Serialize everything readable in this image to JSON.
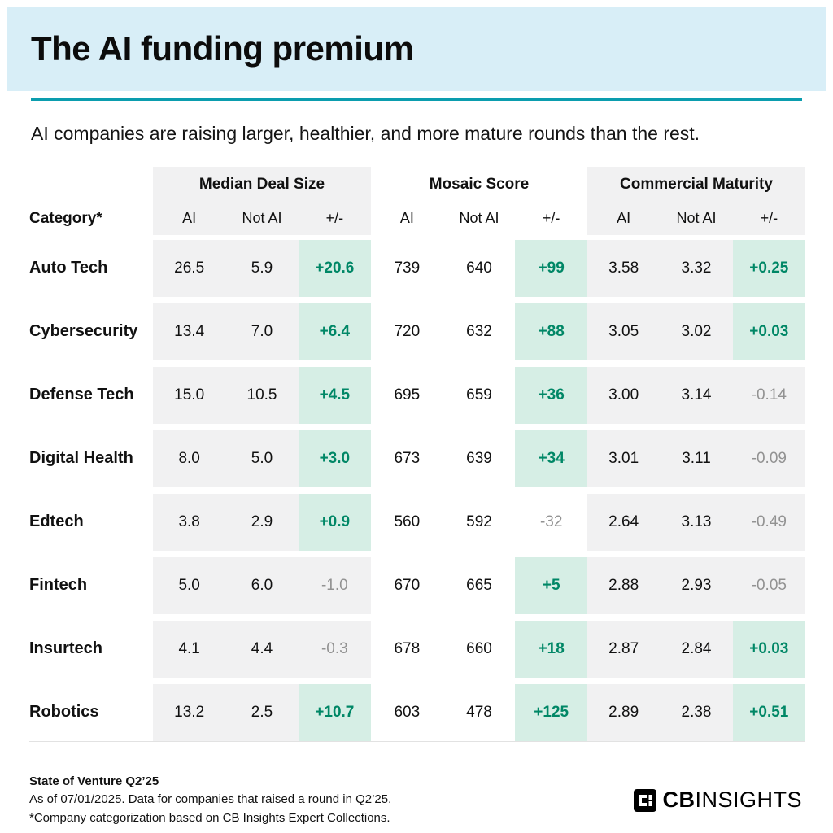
{
  "header": {
    "title": "The AI funding premium",
    "subtitle": "AI companies are raising larger, healthier, and more mature rounds than the rest."
  },
  "chart_data": {
    "type": "table",
    "title": "The AI funding premium",
    "subtitle": "AI companies are raising larger, healthier, and more mature rounds than the rest.",
    "category_header": "Category*",
    "column_groups": [
      {
        "label": "Median Deal Size",
        "columns": [
          "AI",
          "Not AI",
          "+/-"
        ]
      },
      {
        "label": "Mosaic Score",
        "columns": [
          "AI",
          "Not AI",
          "+/-"
        ]
      },
      {
        "label": "Commercial Maturity",
        "columns": [
          "AI",
          "Not AI",
          "+/-"
        ]
      }
    ],
    "rows": [
      {
        "category": "Auto Tech",
        "median_deal_size": {
          "ai": "26.5",
          "not_ai": "5.9",
          "delta": "+20.6"
        },
        "mosaic_score": {
          "ai": "739",
          "not_ai": "640",
          "delta": "+99"
        },
        "commercial_maturity": {
          "ai": "3.58",
          "not_ai": "3.32",
          "delta": "+0.25"
        }
      },
      {
        "category": "Cybersecurity",
        "median_deal_size": {
          "ai": "13.4",
          "not_ai": "7.0",
          "delta": "+6.4"
        },
        "mosaic_score": {
          "ai": "720",
          "not_ai": "632",
          "delta": "+88"
        },
        "commercial_maturity": {
          "ai": "3.05",
          "not_ai": "3.02",
          "delta": "+0.03"
        }
      },
      {
        "category": "Defense Tech",
        "median_deal_size": {
          "ai": "15.0",
          "not_ai": "10.5",
          "delta": "+4.5"
        },
        "mosaic_score": {
          "ai": "695",
          "not_ai": "659",
          "delta": "+36"
        },
        "commercial_maturity": {
          "ai": "3.00",
          "not_ai": "3.14",
          "delta": "-0.14"
        }
      },
      {
        "category": "Digital Health",
        "median_deal_size": {
          "ai": "8.0",
          "not_ai": "5.0",
          "delta": "+3.0"
        },
        "mosaic_score": {
          "ai": "673",
          "not_ai": "639",
          "delta": "+34"
        },
        "commercial_maturity": {
          "ai": "3.01",
          "not_ai": "3.11",
          "delta": "-0.09"
        }
      },
      {
        "category": "Edtech",
        "median_deal_size": {
          "ai": "3.8",
          "not_ai": "2.9",
          "delta": "+0.9"
        },
        "mosaic_score": {
          "ai": "560",
          "not_ai": "592",
          "delta": "-32"
        },
        "commercial_maturity": {
          "ai": "2.64",
          "not_ai": "3.13",
          "delta": "-0.49"
        }
      },
      {
        "category": "Fintech",
        "median_deal_size": {
          "ai": "5.0",
          "not_ai": "6.0",
          "delta": "-1.0"
        },
        "mosaic_score": {
          "ai": "670",
          "not_ai": "665",
          "delta": "+5"
        },
        "commercial_maturity": {
          "ai": "2.88",
          "not_ai": "2.93",
          "delta": "-0.05"
        }
      },
      {
        "category": "Insurtech",
        "median_deal_size": {
          "ai": "4.1",
          "not_ai": "4.4",
          "delta": "-0.3"
        },
        "mosaic_score": {
          "ai": "678",
          "not_ai": "660",
          "delta": "+18"
        },
        "commercial_maturity": {
          "ai": "2.87",
          "not_ai": "2.84",
          "delta": "+0.03"
        }
      },
      {
        "category": "Robotics",
        "median_deal_size": {
          "ai": "13.2",
          "not_ai": "2.5",
          "delta": "+10.7"
        },
        "mosaic_score": {
          "ai": "603",
          "not_ai": "478",
          "delta": "+125"
        },
        "commercial_maturity": {
          "ai": "2.89",
          "not_ai": "2.38",
          "delta": "+0.51"
        }
      }
    ]
  },
  "footer": {
    "line1": "State of Venture Q2’25",
    "line2": "As of 07/01/2025. Data for companies that raised a round in Q2’25.",
    "line3": "*Company categorization based on CB Insights Expert Collections.",
    "logo_bold": "CB",
    "logo_light": "INSIGHTS"
  },
  "colors": {
    "hero_blue": "#d8eef7",
    "accent_teal": "#0b9dae",
    "positive_green": "#008766",
    "positive_mint_bg": "#d6eee5",
    "shaded_gray": "#f1f1f2",
    "negative_gray": "#929292"
  }
}
